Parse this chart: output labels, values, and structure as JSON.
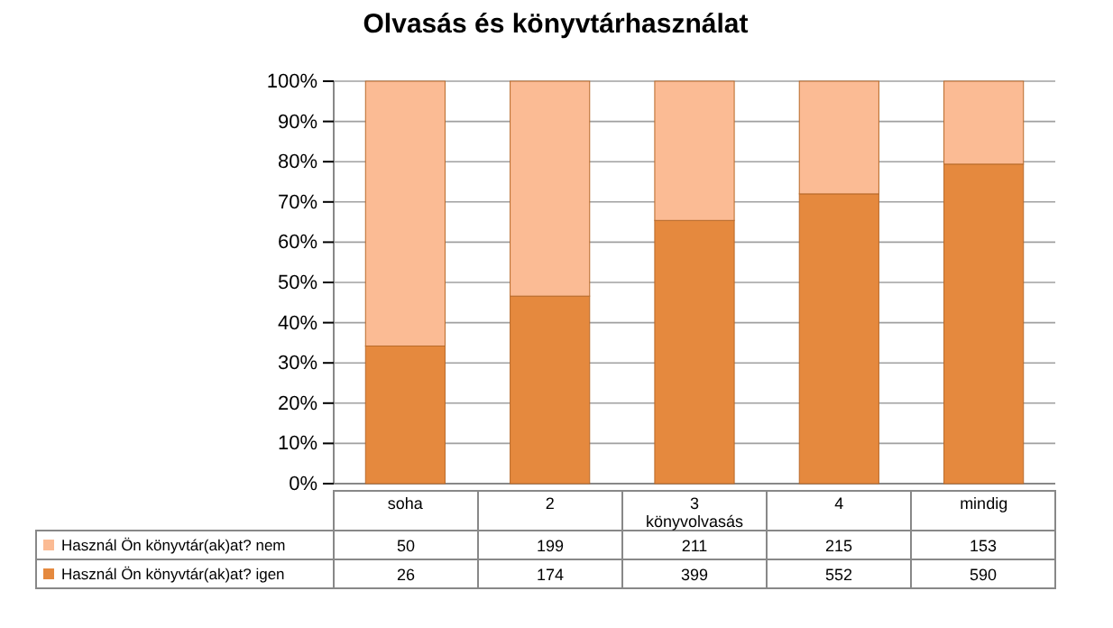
{
  "chart_data": {
    "type": "bar",
    "stacked": true,
    "title": "Olvasás és könyvtárhasználat",
    "xlabel": "könyvolvasás",
    "categories": [
      "soha",
      "2",
      "3",
      "4",
      "mindig"
    ],
    "series": [
      {
        "name": "Használ Ön könyvtár(ak)at? igen",
        "color": "#e5893e",
        "values": [
          34.2,
          46.6,
          65.4,
          72,
          79.4
        ]
      },
      {
        "name": "Használ Ön könyvtár(ak)at? nem",
        "color": "#fbbb94",
        "values": [
          65.8,
          53.4,
          34.6,
          28,
          20.6
        ]
      }
    ],
    "annotations": [
      "50",
      "199",
      "211",
      "215",
      "153",
      "26",
      "174",
      "399",
      "552",
      "590"
    ],
    "ylim": [
      0,
      100
    ],
    "yticks": [
      {
        "value": 0,
        "label": "0%"
      },
      {
        "value": 10,
        "label": "10%"
      },
      {
        "value": 20,
        "label": "20%"
      },
      {
        "value": 30,
        "label": "30%"
      },
      {
        "value": 40,
        "label": "40%"
      },
      {
        "value": 50,
        "label": "50%"
      },
      {
        "value": 60,
        "label": "60%"
      },
      {
        "value": 70,
        "label": "70%"
      },
      {
        "value": 80,
        "label": "80%"
      },
      {
        "value": 90,
        "label": "90%"
      },
      {
        "value": 100,
        "label": "100%"
      }
    ],
    "grid": "y",
    "legend": "bottom left"
  }
}
